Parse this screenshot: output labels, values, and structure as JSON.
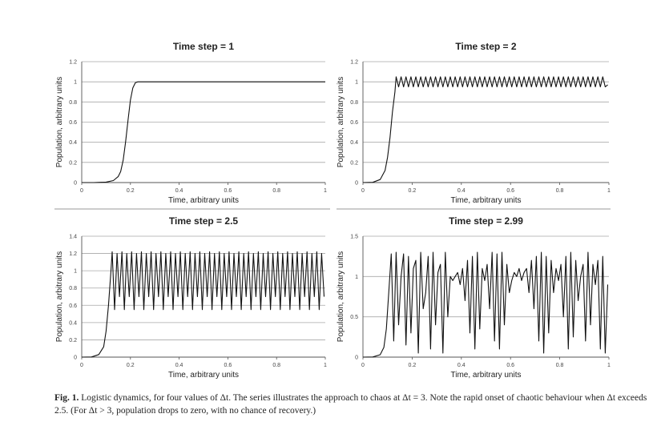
{
  "chart_data": [
    {
      "type": "line",
      "title": "Time step = 1",
      "xlabel": "Time, arbitrary units",
      "ylabel": "Population, arbitrary units",
      "xlim": [
        0,
        1
      ],
      "ylim": [
        0,
        1.2
      ],
      "xticks": [
        "0",
        "0.2",
        "0.4",
        "0.6",
        "0.8",
        "1"
      ],
      "yticks": [
        "0",
        "0.2",
        "0.4",
        "0.6",
        "0.8",
        "1",
        "1.2"
      ],
      "series": [
        {
          "x": [
            0,
            0.05,
            0.1,
            0.13,
            0.15,
            0.16,
            0.17,
            0.18,
            0.19,
            0.2,
            0.21,
            0.22,
            0.23,
            0.24,
            0.3,
            0.5,
            0.7,
            0.9,
            1.0
          ],
          "values": [
            0,
            0,
            0.005,
            0.02,
            0.06,
            0.11,
            0.22,
            0.4,
            0.62,
            0.82,
            0.94,
            0.99,
            1.0,
            1.0,
            1.0,
            1.0,
            1.0,
            1.0,
            1.0
          ]
        }
      ]
    },
    {
      "type": "line",
      "title": "Time step = 2",
      "xlabel": "Time, arbitrary units",
      "ylabel": "Population, arbitrary units",
      "xlim": [
        0,
        1
      ],
      "ylim": [
        0,
        1.2
      ],
      "xticks": [
        "0",
        "0.2",
        "0.4",
        "0.6",
        "0.8",
        "1"
      ],
      "yticks": [
        "0",
        "0.2",
        "0.4",
        "0.6",
        "0.8",
        "1",
        "1.2"
      ],
      "series": [
        {
          "x": [
            0,
            0.04,
            0.07,
            0.09,
            0.1,
            0.11,
            0.12,
            0.13,
            0.135,
            0.145,
            0.155,
            0.165,
            0.175,
            0.185,
            0.195,
            0.205,
            0.215,
            0.225,
            0.235,
            0.245,
            0.255,
            0.265,
            0.275,
            0.285,
            0.295,
            0.305,
            0.315,
            0.325,
            0.335,
            0.345,
            0.355,
            0.365,
            0.375,
            0.385,
            0.395,
            0.405,
            0.415,
            0.425,
            0.435,
            0.445,
            0.455,
            0.465,
            0.475,
            0.485,
            0.495,
            0.505,
            0.515,
            0.525,
            0.535,
            0.545,
            0.555,
            0.565,
            0.575,
            0.585,
            0.595,
            0.605,
            0.615,
            0.625,
            0.635,
            0.645,
            0.655,
            0.665,
            0.675,
            0.685,
            0.695,
            0.705,
            0.715,
            0.725,
            0.735,
            0.745,
            0.755,
            0.765,
            0.775,
            0.785,
            0.795,
            0.805,
            0.815,
            0.825,
            0.835,
            0.845,
            0.855,
            0.865,
            0.875,
            0.885,
            0.895,
            0.905,
            0.915,
            0.925,
            0.935,
            0.945,
            0.955,
            0.965,
            0.975,
            0.985,
            0.995
          ],
          "values": [
            0,
            0.002,
            0.03,
            0.12,
            0.25,
            0.45,
            0.7,
            0.9,
            1.05,
            0.95,
            1.05,
            0.95,
            1.05,
            0.95,
            1.05,
            0.95,
            1.05,
            0.95,
            1.05,
            0.95,
            1.05,
            0.95,
            1.05,
            0.95,
            1.05,
            0.95,
            1.05,
            0.95,
            1.05,
            0.95,
            1.05,
            0.95,
            1.05,
            0.95,
            1.05,
            0.95,
            1.05,
            0.95,
            1.05,
            0.95,
            1.05,
            0.95,
            1.05,
            0.95,
            1.05,
            0.95,
            1.05,
            0.95,
            1.05,
            0.95,
            1.05,
            0.95,
            1.05,
            0.95,
            1.05,
            0.95,
            1.05,
            0.95,
            1.05,
            0.95,
            1.05,
            0.95,
            1.05,
            0.95,
            1.05,
            0.95,
            1.05,
            0.95,
            1.05,
            0.95,
            1.05,
            0.95,
            1.05,
            0.95,
            1.05,
            0.95,
            1.05,
            0.95,
            1.05,
            0.95,
            1.05,
            0.95,
            1.05,
            0.95,
            1.05,
            0.95,
            1.05,
            0.95,
            1.05,
            0.95,
            1.05,
            0.95,
            1.05,
            0.95,
            0.97
          ]
        }
      ]
    },
    {
      "type": "line",
      "title": "Time step = 2.5",
      "xlabel": "Time, arbitrary units",
      "ylabel": "Population, arbitrary units",
      "xlim": [
        0,
        1
      ],
      "ylim": [
        0,
        1.4
      ],
      "xticks": [
        "0",
        "0.2",
        "0.4",
        "0.6",
        "0.8",
        "1"
      ],
      "yticks": [
        "0",
        "0.2",
        "0.4",
        "0.6",
        "0.8",
        "1",
        "1.2",
        "1.4"
      ],
      "series": [
        {
          "x": [
            0,
            0.04,
            0.07,
            0.09,
            0.1,
            0.11,
            0.12,
            0.125,
            0.135,
            0.145,
            0.155,
            0.165,
            0.175,
            0.185,
            0.195,
            0.205,
            0.215,
            0.225,
            0.235,
            0.245,
            0.255,
            0.265,
            0.275,
            0.285,
            0.295,
            0.305,
            0.315,
            0.325,
            0.335,
            0.345,
            0.355,
            0.365,
            0.375,
            0.385,
            0.395,
            0.405,
            0.415,
            0.425,
            0.435,
            0.445,
            0.455,
            0.465,
            0.475,
            0.485,
            0.495,
            0.505,
            0.515,
            0.525,
            0.535,
            0.545,
            0.555,
            0.565,
            0.575,
            0.585,
            0.595,
            0.605,
            0.615,
            0.625,
            0.635,
            0.645,
            0.655,
            0.665,
            0.675,
            0.685,
            0.695,
            0.705,
            0.715,
            0.725,
            0.735,
            0.745,
            0.755,
            0.765,
            0.775,
            0.785,
            0.795,
            0.805,
            0.815,
            0.825,
            0.835,
            0.845,
            0.855,
            0.865,
            0.875,
            0.885,
            0.895,
            0.905,
            0.915,
            0.925,
            0.935,
            0.945,
            0.955,
            0.965,
            0.975,
            0.985,
            0.995
          ],
          "values": [
            0,
            0.002,
            0.03,
            0.12,
            0.3,
            0.6,
            1.0,
            1.22,
            0.55,
            1.2,
            0.7,
            1.22,
            0.55,
            1.2,
            0.7,
            1.22,
            0.55,
            1.2,
            0.7,
            1.22,
            0.55,
            1.2,
            0.7,
            1.22,
            0.55,
            1.2,
            0.7,
            1.22,
            0.55,
            1.2,
            0.7,
            1.22,
            0.55,
            1.2,
            0.7,
            1.22,
            0.55,
            1.2,
            0.7,
            1.22,
            0.55,
            1.2,
            0.7,
            1.22,
            0.55,
            1.2,
            0.7,
            1.22,
            0.55,
            1.2,
            0.7,
            1.22,
            0.55,
            1.2,
            0.7,
            1.22,
            0.55,
            1.2,
            0.7,
            1.22,
            0.55,
            1.2,
            0.7,
            1.22,
            0.55,
            1.2,
            0.7,
            1.22,
            0.55,
            1.2,
            0.7,
            1.22,
            0.55,
            1.2,
            0.7,
            1.22,
            0.55,
            1.2,
            0.7,
            1.22,
            0.55,
            1.2,
            0.7,
            1.22,
            0.55,
            1.2,
            0.7,
            1.22,
            0.55,
            1.2,
            0.7,
            1.22,
            0.55,
            1.2,
            0.7
          ]
        }
      ]
    },
    {
      "type": "line",
      "title": "Time step = 2.99",
      "xlabel": "Time, arbitrary units",
      "ylabel": "Population, arbitrary units",
      "xlim": [
        0,
        1
      ],
      "ylim": [
        0,
        1.5
      ],
      "xticks": [
        "0",
        "0.2",
        "0.4",
        "0.6",
        "0.8",
        "1"
      ],
      "yticks": [
        "0",
        "0.5",
        "1",
        "1.5"
      ],
      "series": [
        {
          "x": [
            0,
            0.04,
            0.07,
            0.085,
            0.095,
            0.105,
            0.115,
            0.125,
            0.135,
            0.145,
            0.155,
            0.165,
            0.175,
            0.185,
            0.195,
            0.205,
            0.215,
            0.225,
            0.235,
            0.245,
            0.255,
            0.265,
            0.275,
            0.285,
            0.295,
            0.305,
            0.315,
            0.325,
            0.335,
            0.345,
            0.355,
            0.365,
            0.375,
            0.385,
            0.395,
            0.405,
            0.415,
            0.425,
            0.435,
            0.445,
            0.455,
            0.465,
            0.475,
            0.485,
            0.495,
            0.505,
            0.515,
            0.525,
            0.535,
            0.545,
            0.555,
            0.565,
            0.575,
            0.585,
            0.595,
            0.605,
            0.615,
            0.625,
            0.635,
            0.645,
            0.655,
            0.665,
            0.675,
            0.685,
            0.695,
            0.705,
            0.715,
            0.725,
            0.735,
            0.745,
            0.755,
            0.765,
            0.775,
            0.785,
            0.795,
            0.805,
            0.815,
            0.825,
            0.835,
            0.845,
            0.855,
            0.865,
            0.875,
            0.885,
            0.895,
            0.905,
            0.915,
            0.925,
            0.935,
            0.945,
            0.955,
            0.965,
            0.975,
            0.985,
            0.995
          ],
          "values": [
            0,
            0.002,
            0.03,
            0.12,
            0.35,
            0.8,
            1.28,
            0.2,
            1.3,
            0.4,
            1.0,
            1.28,
            0.15,
            1.25,
            0.3,
            1.1,
            1.2,
            0.05,
            1.3,
            0.6,
            0.8,
            1.25,
            0.1,
            1.3,
            0.4,
            1.05,
            1.15,
            0.05,
            1.3,
            0.5,
            1.0,
            0.95,
            1.0,
            1.05,
            0.9,
            1.1,
            0.7,
            1.2,
            0.3,
            1.25,
            0.1,
            1.3,
            0.35,
            1.1,
            0.95,
            1.15,
            0.6,
            1.3,
            0.2,
            1.28,
            0.1,
            1.3,
            0.4,
            1.15,
            0.8,
            0.95,
            1.05,
            1.0,
            1.1,
            0.95,
            1.05,
            1.1,
            0.8,
            1.2,
            0.6,
            1.25,
            0.2,
            1.3,
            0.05,
            1.25,
            0.3,
            1.2,
            0.8,
            1.1,
            0.95,
            1.15,
            0.5,
            1.25,
            0.1,
            1.3,
            0.25,
            1.2,
            0.7,
            1.0,
            1.15,
            0.2,
            1.3,
            0.4,
            1.15,
            0.9,
            1.2,
            0.1,
            1.25,
            0.05,
            0.9
          ]
        }
      ]
    }
  ],
  "caption": {
    "label": "Fig. 1.",
    "text": "Logistic dynamics, for four values of Δt. The series illustrates the approach to chaos at Δt = 3. Note the rapid onset of chaotic behaviour when Δt exceeds 2.5. (For Δt > 3, population drops to zero, with no chance of recovery.)"
  }
}
